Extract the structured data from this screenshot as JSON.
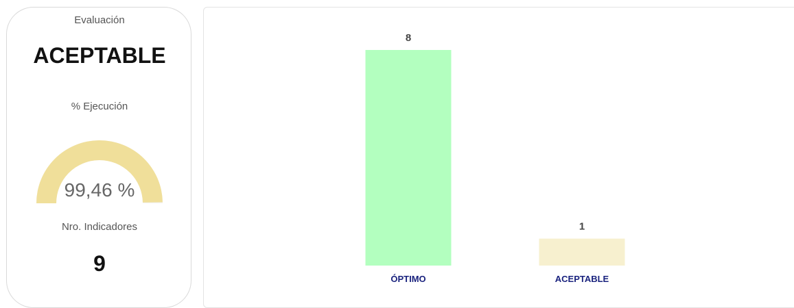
{
  "kpi": {
    "evaluation_label": "Evaluación",
    "evaluation_value": "ACEPTABLE",
    "execution_label": "% Ejecución",
    "execution_text": "99,46 %",
    "execution_percent": 99.46,
    "indicators_label": "Nro. Indicadores",
    "indicators_value": "9"
  },
  "colors": {
    "gauge_fill": "#f0df9a",
    "optimo": "#b3ffbf",
    "aceptable": "#f7f0cf",
    "category_label": "#1a237e"
  },
  "chart_data": {
    "type": "bar",
    "categories": [
      "ÓPTIMO",
      "ACEPTABLE"
    ],
    "values": [
      8,
      1
    ],
    "data_labels": [
      "8",
      "1"
    ],
    "bar_colors": [
      "#b3ffbf",
      "#f7f0cf"
    ],
    "ylim": [
      0,
      8
    ],
    "grid": false,
    "legend": "none"
  }
}
